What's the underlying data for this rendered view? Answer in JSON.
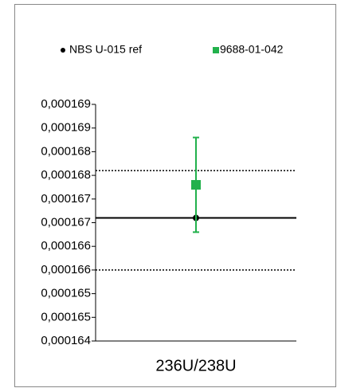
{
  "chart_data": {
    "type": "errorbar",
    "categories": [
      "236U/238U"
    ],
    "series": [
      {
        "name": "NBS U-015 ref",
        "color": "#000000",
        "marker": "circle",
        "values": [
          0.0001666
        ]
      },
      {
        "name": "9688-01-042",
        "color": "#22b14c",
        "marker": "square",
        "values": [
          0.0001673
        ],
        "errors": [
          1e-06
        ]
      }
    ],
    "reference_lines": [
      {
        "value": 0.0001666,
        "style": "solid"
      },
      {
        "value": 0.0001676,
        "style": "dotted"
      },
      {
        "value": 0.0001655,
        "style": "dotted"
      }
    ],
    "ylim": [
      0.000164,
      0.000169
    ],
    "yticks": [
      {
        "value": 0.000164,
        "label": "0,000164"
      },
      {
        "value": 0.0001645,
        "label": "0,000165"
      },
      {
        "value": 0.000165,
        "label": "0,000165"
      },
      {
        "value": 0.0001655,
        "label": "0,000166"
      },
      {
        "value": 0.000166,
        "label": "0,000166"
      },
      {
        "value": 0.0001665,
        "label": "0,000167"
      },
      {
        "value": 0.000167,
        "label": "0,000167"
      },
      {
        "value": 0.0001675,
        "label": "0,000168"
      },
      {
        "value": 0.000168,
        "label": "0,000168"
      },
      {
        "value": 0.0001685,
        "label": "0,000169"
      },
      {
        "value": 0.000169,
        "label": "0,000169"
      }
    ],
    "grid": false,
    "legend": "top"
  }
}
